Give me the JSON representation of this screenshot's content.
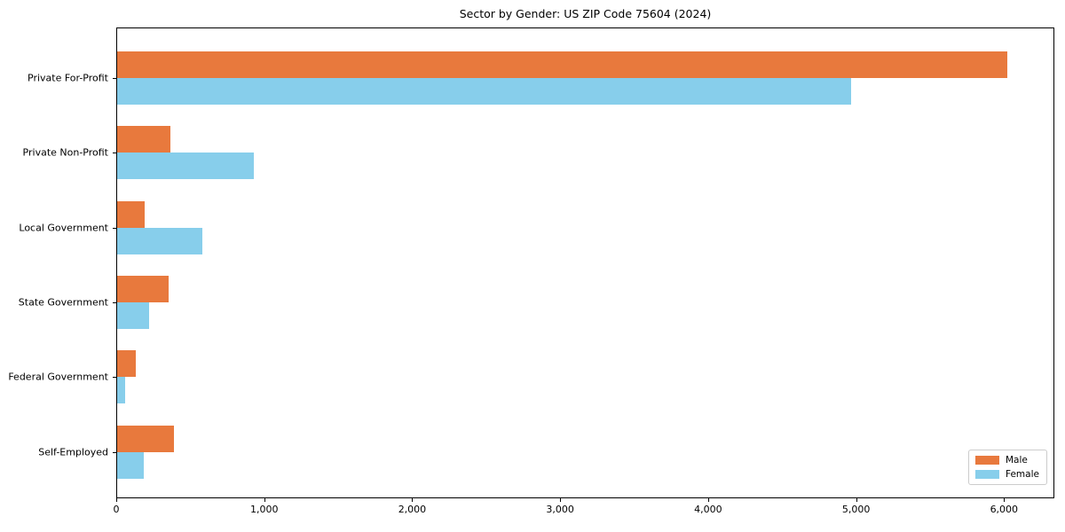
{
  "chart_data": {
    "type": "bar",
    "orientation": "horizontal",
    "title": "Sector by Gender: US ZIP Code 75604 (2024)",
    "categories": [
      "Private For-Profit",
      "Private Non-Profit",
      "Local Government",
      "State Government",
      "Federal Government",
      "Self-Employed"
    ],
    "series": [
      {
        "name": "Male",
        "color": "#e8793d",
        "values": [
          6020,
          365,
          190,
          355,
          130,
          390
        ]
      },
      {
        "name": "Female",
        "color": "#87ceeb",
        "values": [
          4965,
          930,
          580,
          220,
          60,
          185
        ]
      }
    ],
    "xlabel": "",
    "ylabel": "",
    "xlim": [
      0,
      6340
    ],
    "xticks": [
      0,
      1000,
      2000,
      3000,
      4000,
      5000,
      6000
    ],
    "xtick_labels": [
      "0",
      "1,000",
      "2,000",
      "3,000",
      "4,000",
      "5,000",
      "6,000"
    ],
    "grid": false,
    "legend": {
      "position": "lower right",
      "entries": [
        "Male",
        "Female"
      ]
    },
    "frame_color": "#000000",
    "background_color": "#ffffff"
  }
}
